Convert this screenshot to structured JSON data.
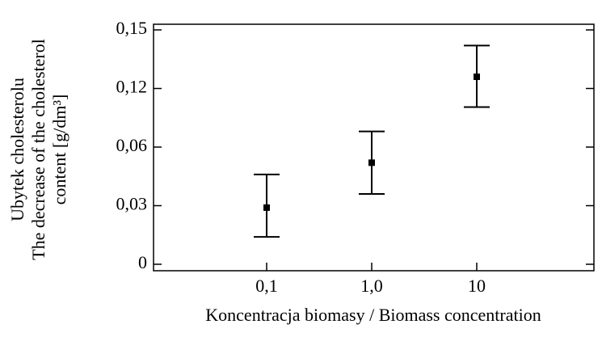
{
  "chart_data": {
    "type": "errorbar",
    "xlabel": "Koncentracja biomasy / Biomass concentration",
    "ylabel": [
      "Ubytek cholesterolu",
      "The decrease of the cholesterol",
      "content [g/dm³]"
    ],
    "categories": [
      "0,1",
      "1,0",
      "10"
    ],
    "values": [
      0.029,
      0.052,
      0.126
    ],
    "low": [
      0.014,
      0.036,
      0.101
    ],
    "high": [
      0.046,
      0.076,
      0.142
    ],
    "color": "#000000",
    "ylim": [
      0,
      0.15
    ],
    "yticks": [
      0,
      {
        "value": 0.03,
        "label": "0,03"
      },
      {
        "value": 0.06,
        "label": "0,06"
      },
      {
        "value": 0.12,
        "label": "0,12"
      },
      {
        "value": 0.15,
        "label": "0,15"
      }
    ]
  }
}
